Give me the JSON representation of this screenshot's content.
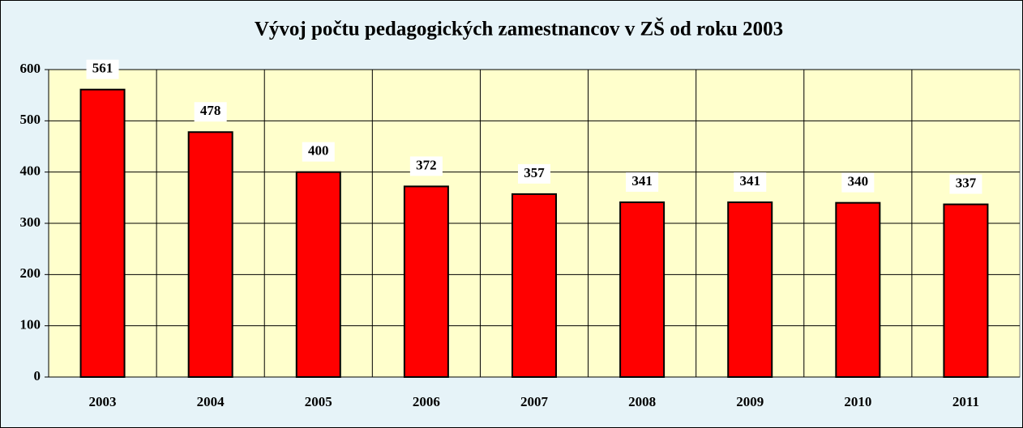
{
  "chart_data": {
    "type": "bar",
    "title": "Vývoj počtu  pedagogických zamestnancov v ZŠ od roku 2003",
    "categories": [
      "2003",
      "2004",
      "2005",
      "2006",
      "2007",
      "2008",
      "2009",
      "2010",
      "2011"
    ],
    "values": [
      561,
      478,
      400,
      372,
      357,
      341,
      341,
      340,
      337
    ],
    "color": "#ff0000",
    "ylim": [
      0,
      600
    ],
    "yticks": [
      0,
      100,
      200,
      300,
      400,
      500,
      600
    ],
    "grid": true
  }
}
